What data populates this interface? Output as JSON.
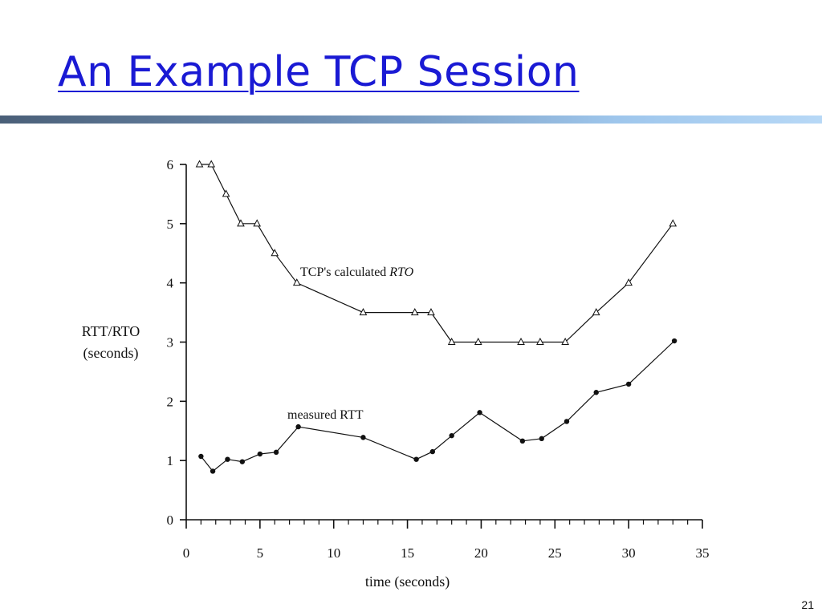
{
  "slide": {
    "title": "An Example TCP Session",
    "page_number": "21"
  },
  "chart_data": {
    "type": "line",
    "title": "",
    "xlabel": "time (seconds)",
    "ylabel": "RTT/RTO",
    "ylabel_units": "(seconds)",
    "xlim": [
      0,
      35
    ],
    "ylim": [
      0,
      6
    ],
    "xticks": [
      0,
      5,
      10,
      15,
      20,
      25,
      30,
      35
    ],
    "yticks": [
      0,
      1,
      2,
      3,
      4,
      5,
      6
    ],
    "grid": false,
    "series": [
      {
        "name": "rto",
        "label_prefix": "TCP's calculated ",
        "label_italic": "RTO",
        "marker": "triangle",
        "points": [
          [
            0.9,
            6.0
          ],
          [
            1.7,
            6.0
          ],
          [
            2.7,
            5.5
          ],
          [
            3.7,
            5.0
          ],
          [
            4.8,
            5.0
          ],
          [
            6.0,
            4.5
          ],
          [
            7.5,
            4.0
          ],
          [
            12.0,
            3.5
          ],
          [
            15.5,
            3.5
          ],
          [
            16.6,
            3.5
          ],
          [
            18.0,
            3.0
          ],
          [
            19.8,
            3.0
          ],
          [
            22.7,
            3.0
          ],
          [
            24.0,
            3.0
          ],
          [
            25.7,
            3.0
          ],
          [
            27.8,
            3.5
          ],
          [
            30.0,
            4.0
          ],
          [
            33.0,
            5.0
          ]
        ]
      },
      {
        "name": "rtt",
        "label_prefix": "measured RTT",
        "label_italic": "",
        "marker": "dot",
        "points": [
          [
            1.0,
            1.07
          ],
          [
            1.8,
            0.82
          ],
          [
            2.8,
            1.02
          ],
          [
            3.8,
            0.98
          ],
          [
            5.0,
            1.11
          ],
          [
            6.1,
            1.14
          ],
          [
            7.6,
            1.57
          ],
          [
            12.0,
            1.39
          ],
          [
            15.6,
            1.02
          ],
          [
            16.7,
            1.15
          ],
          [
            18.0,
            1.42
          ],
          [
            19.9,
            1.81
          ],
          [
            22.8,
            1.33
          ],
          [
            24.1,
            1.37
          ],
          [
            25.8,
            1.66
          ],
          [
            27.8,
            2.15
          ],
          [
            30.0,
            2.29
          ],
          [
            33.1,
            3.02
          ]
        ]
      }
    ]
  }
}
